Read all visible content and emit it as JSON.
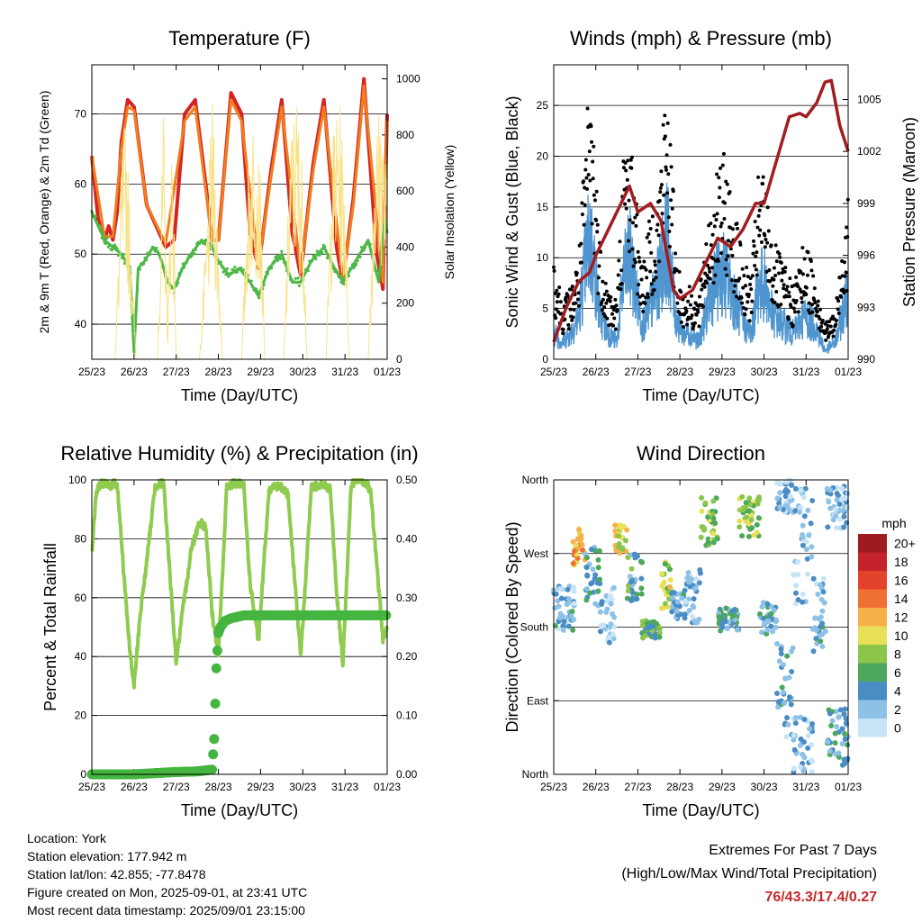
{
  "colors": {
    "red": "#d62323",
    "orange": "#f07d1e",
    "green": "#4db848",
    "yellow": "#f8e38a",
    "blue": "#4f95cf",
    "black": "#000000",
    "maroon": "#a11d21",
    "rh_green": "#8fcb4f",
    "precip_green": "#45b540",
    "extremes": "#c62828"
  },
  "footer": {
    "location": "Location: York",
    "elevation": "Station elevation: 177.942 m",
    "latlon": "Station lat/lon: 42.855; -77.8478",
    "created": "Figure created on Mon, 2025-09-01, at 23:41 UTC",
    "recent": "Most recent data timestamp: 2025/09/01 23:15:00",
    "extremes_title": "Extremes For Past 7 Days",
    "extremes_subtitle": "(High/Low/Max Wind/Total Precipitation)",
    "extremes_values": "76/43.3/17.4/0.27"
  },
  "chart_data": [
    {
      "type": "line",
      "title": "Temperature (F)",
      "xlabel": "Time (Day/UTC)",
      "ylabel": "2m & 9m T (Red, Orange) & 2m Td (Green)",
      "y2label": "Solar Insolation (Yellow)",
      "x_ticks": [
        "25/23",
        "26/23",
        "27/23",
        "28/23",
        "29/23",
        "30/23",
        "31/23",
        "01/23"
      ],
      "xlim": [
        0,
        7
      ],
      "ylim": [
        35,
        77
      ],
      "y_ticks": [
        40,
        50,
        60,
        70
      ],
      "y2lim": [
        0,
        1050
      ],
      "y2_ticks": [
        0,
        200,
        400,
        600,
        800,
        1000
      ],
      "grid": true,
      "series": [
        {
          "color": "red",
          "axis": "left",
          "x": [
            0,
            0.15,
            0.3,
            0.4,
            0.5,
            0.6,
            0.7,
            0.85,
            1.0,
            1.3,
            1.6,
            1.75,
            1.95,
            2.2,
            2.45,
            2.7,
            2.85,
            3.0,
            3.3,
            3.55,
            3.75,
            3.95,
            4.25,
            4.5,
            4.75,
            4.95,
            5.25,
            5.5,
            5.8,
            5.95,
            6.2,
            6.45,
            6.75,
            6.9,
            7.0
          ],
          "y": [
            64,
            55,
            52,
            54,
            52,
            56,
            66,
            72,
            71,
            57,
            53,
            51,
            52,
            70,
            72,
            60,
            52,
            52,
            73,
            70,
            53,
            48,
            62,
            72,
            53,
            47,
            63,
            72,
            51,
            46,
            58,
            75,
            50,
            45,
            70
          ]
        },
        {
          "color": "orange",
          "axis": "left",
          "x": [
            0,
            0.3,
            0.5,
            0.7,
            0.85,
            1.0,
            1.3,
            1.75,
            2.2,
            2.45,
            2.85,
            3.0,
            3.3,
            3.55,
            3.95,
            4.25,
            4.5,
            4.95,
            5.25,
            5.5,
            5.95,
            6.2,
            6.45,
            6.9,
            7.0
          ],
          "y": [
            64,
            52.5,
            52.5,
            65,
            71,
            70.5,
            57,
            51.5,
            69,
            71,
            52,
            52,
            72,
            69,
            48.5,
            61,
            71,
            47.5,
            62,
            71,
            46.5,
            57,
            74,
            46,
            69
          ]
        },
        {
          "color": "green",
          "axis": "left",
          "x": [
            0,
            0.3,
            0.5,
            0.7,
            0.9,
            1.0,
            1.1,
            1.25,
            1.45,
            1.6,
            1.8,
            1.95,
            2.15,
            2.35,
            2.6,
            2.85,
            3.0,
            3.25,
            3.5,
            3.75,
            3.95,
            4.2,
            4.5,
            4.75,
            4.95,
            5.2,
            5.5,
            5.75,
            5.95,
            6.25,
            6.55,
            6.8,
            6.95,
            7.0
          ],
          "y": [
            56,
            52,
            51,
            50,
            48,
            36,
            48,
            49,
            51,
            50,
            46,
            45,
            48,
            50,
            52,
            51,
            49,
            47,
            48,
            46,
            44,
            48,
            50,
            46,
            46,
            49,
            51,
            48,
            46,
            49,
            52,
            46,
            55,
            53
          ]
        },
        {
          "color": "yellow",
          "axis": "right",
          "x": [
            0,
            0.55,
            0.7,
            0.8,
            0.9,
            1.05,
            1.1,
            1.55,
            1.7,
            1.8,
            1.9,
            2.0,
            2.1,
            2.55,
            2.75,
            2.85,
            2.95,
            3.1,
            3.55,
            3.7,
            3.85,
            4.0,
            4.1,
            4.55,
            4.7,
            4.85,
            5.0,
            5.1,
            5.55,
            5.7,
            5.85,
            6.0,
            6.1,
            6.55,
            6.7,
            6.85,
            7.0
          ],
          "y": [
            0,
            0,
            700,
            900,
            550,
            0,
            0,
            0,
            900,
            120,
            950,
            20,
            0,
            0,
            550,
            950,
            620,
            0,
            0,
            700,
            920,
            650,
            0,
            0,
            800,
            960,
            700,
            0,
            0,
            800,
            960,
            700,
            0,
            0,
            800,
            960,
            650
          ]
        }
      ]
    },
    {
      "type": "line",
      "title": "Winds (mph) & Pressure (mb)",
      "xlabel": "Time (Day/UTC)",
      "ylabel": "Sonic Wind & Gust (Blue, Black)",
      "y2label": "Station Pressure (Maroon)",
      "x_ticks": [
        "25/23",
        "26/23",
        "27/23",
        "28/23",
        "29/23",
        "30/23",
        "31/23",
        "01/23"
      ],
      "xlim": [
        0,
        7
      ],
      "ylim": [
        0,
        29
      ],
      "y_ticks": [
        0,
        5,
        10,
        15,
        20,
        25
      ],
      "y2lim": [
        990,
        1007
      ],
      "y2_ticks": [
        990,
        993,
        996,
        999,
        1002,
        1005
      ],
      "grid": true,
      "series": [
        {
          "color": "black",
          "axis": "left",
          "kind": "scatter",
          "x": [
            0,
            0.2,
            0.4,
            0.6,
            0.75,
            0.85,
            0.95,
            1.1,
            1.3,
            1.5,
            1.65,
            1.8,
            1.95,
            2.1,
            2.3,
            2.5,
            2.6,
            2.7,
            2.9,
            3.05,
            3.25,
            3.45,
            3.65,
            3.85,
            4.05,
            4.3,
            4.5,
            4.7,
            4.85,
            5.0,
            5.2,
            5.45,
            5.7,
            5.95,
            6.2,
            6.45,
            6.7,
            6.9,
            7.0
          ],
          "y": [
            9,
            5,
            6,
            9,
            18,
            24,
            20,
            10,
            6,
            5,
            17,
            20,
            14,
            8,
            12,
            15,
            21,
            24,
            10,
            6,
            6,
            5,
            12,
            15,
            17,
            13,
            8,
            7,
            15,
            16,
            10,
            8,
            6,
            10,
            8,
            3,
            4,
            12,
            14
          ]
        },
        {
          "color": "blue",
          "axis": "left",
          "x": [
            0,
            0.2,
            0.4,
            0.6,
            0.75,
            0.85,
            0.95,
            1.1,
            1.3,
            1.5,
            1.65,
            1.8,
            1.95,
            2.1,
            2.3,
            2.5,
            2.6,
            2.7,
            2.9,
            3.05,
            3.25,
            3.45,
            3.65,
            3.85,
            4.05,
            4.3,
            4.5,
            4.7,
            4.85,
            5.0,
            5.2,
            5.45,
            5.7,
            5.95,
            6.2,
            6.45,
            6.7,
            6.9,
            7.0
          ],
          "y": [
            3,
            2,
            3,
            5,
            11,
            14,
            11,
            5,
            3,
            2,
            9,
            12,
            8,
            4,
            6,
            9,
            12,
            14,
            5,
            3,
            3,
            2,
            6,
            9,
            10,
            7,
            4,
            3,
            8,
            9,
            5,
            4,
            3,
            5,
            4,
            1,
            2,
            6,
            8
          ]
        },
        {
          "color": "maroon",
          "axis": "right",
          "x": [
            0,
            0.3,
            0.6,
            0.85,
            1.0,
            1.2,
            1.5,
            1.8,
            2.0,
            2.3,
            2.55,
            2.85,
            3.0,
            3.3,
            3.6,
            3.9,
            4.2,
            4.5,
            4.8,
            5.0,
            5.3,
            5.6,
            5.85,
            6.0,
            6.25,
            6.45,
            6.6,
            6.8,
            7.0
          ],
          "y": [
            991,
            993,
            994.5,
            995,
            996,
            997,
            998.5,
            1000,
            998.5,
            999,
            998,
            994,
            993.5,
            994,
            995.5,
            997,
            996.5,
            997.5,
            999,
            999,
            1001.5,
            1004,
            1004.2,
            1004,
            1004.8,
            1006,
            1006.1,
            1003.5,
            1002
          ]
        }
      ]
    },
    {
      "type": "line",
      "title": "Relative Humidity (%) & Precipitation (in)",
      "xlabel": "Time (Day/UTC)",
      "ylabel": "Percent & Total Rainfall",
      "x_ticks": [
        "25/23",
        "26/23",
        "27/23",
        "28/23",
        "29/23",
        "30/23",
        "31/23",
        "01/23"
      ],
      "xlim": [
        0,
        7
      ],
      "ylim": [
        0,
        100
      ],
      "y_ticks": [
        0,
        20,
        40,
        60,
        80,
        100
      ],
      "y2lim": [
        0,
        0.5
      ],
      "y2_ticks": [
        "0.00",
        "0.10",
        "0.20",
        "0.30",
        "0.40",
        "0.50"
      ],
      "grid": true,
      "series": [
        {
          "color": "rh_green",
          "axis": "left",
          "x": [
            0,
            0.1,
            0.2,
            0.4,
            0.6,
            0.75,
            0.9,
            1.0,
            1.15,
            1.3,
            1.5,
            1.7,
            1.85,
            2.0,
            2.15,
            2.35,
            2.55,
            2.7,
            2.85,
            3.0,
            3.2,
            3.4,
            3.6,
            3.75,
            3.95,
            4.2,
            4.45,
            4.65,
            4.8,
            4.95,
            5.2,
            5.45,
            5.65,
            5.8,
            5.95,
            6.15,
            6.4,
            6.6,
            6.75,
            6.9,
            7.0
          ],
          "y": [
            75,
            95,
            99,
            98,
            99,
            70,
            42,
            30,
            55,
            72,
            98,
            99,
            68,
            38,
            55,
            76,
            86,
            84,
            55,
            40,
            98,
            99,
            98,
            65,
            45,
            97,
            98,
            95,
            68,
            40,
            97,
            99,
            97,
            62,
            38,
            99,
            100,
            97,
            72,
            46,
            50
          ]
        },
        {
          "color": "precip_green",
          "axis": "right",
          "x": [
            0,
            0.5,
            1.0,
            1.5,
            2.0,
            2.5,
            2.85,
            2.9,
            2.95,
            3.0,
            3.05,
            3.15,
            3.3,
            3.6,
            4.0,
            5.0,
            6.0,
            7.0
          ],
          "y": [
            0,
            0,
            0,
            0.002,
            0.004,
            0.005,
            0.008,
            0.06,
            0.18,
            0.24,
            0.25,
            0.26,
            0.265,
            0.27,
            0.27,
            0.27,
            0.27,
            0.27
          ]
        }
      ]
    },
    {
      "type": "scatter",
      "title": "Wind Direction",
      "xlabel": "Time (Day/UTC)",
      "ylabel": "Direction (Colored By Speed)",
      "x_ticks": [
        "25/23",
        "26/23",
        "27/23",
        "28/23",
        "29/23",
        "30/23",
        "31/23",
        "01/23"
      ],
      "xlim": [
        0,
        7
      ],
      "ylim": [
        0,
        360
      ],
      "y_ticks": [
        {
          "value": 0,
          "label": "North"
        },
        {
          "value": 90,
          "label": "East"
        },
        {
          "value": 180,
          "label": "South"
        },
        {
          "value": 270,
          "label": "West"
        },
        {
          "value": 360,
          "label": "North"
        }
      ],
      "grid": true,
      "legend_title": "mph",
      "legend": [
        {
          "label": "0",
          "color": "#c6e4f6"
        },
        {
          "label": "2",
          "color": "#8ec1e6"
        },
        {
          "label": "4",
          "color": "#4a8dc4"
        },
        {
          "label": "6",
          "color": "#4ba85c"
        },
        {
          "label": "8",
          "color": "#8cc54b"
        },
        {
          "label": "10",
          "color": "#e8e056"
        },
        {
          "label": "12",
          "color": "#f6b14a"
        },
        {
          "label": "14",
          "color": "#ef7033"
        },
        {
          "label": "16",
          "color": "#e2432a"
        },
        {
          "label": "18",
          "color": "#c4222a"
        },
        {
          "label": "20+",
          "color": "#9e1c20"
        }
      ],
      "clusters": [
        {
          "x": [
            0,
            0.5
          ],
          "dir": [
            175,
            230
          ],
          "speed": 3
        },
        {
          "x": [
            0.45,
            0.75
          ],
          "dir": [
            255,
            300
          ],
          "speed": 12
        },
        {
          "x": [
            0.75,
            1.1
          ],
          "dir": [
            205,
            280
          ],
          "speed": 4
        },
        {
          "x": [
            1.1,
            1.45
          ],
          "dir": [
            160,
            230
          ],
          "speed": 2
        },
        {
          "x": [
            1.45,
            1.75
          ],
          "dir": [
            270,
            305
          ],
          "speed": 10
        },
        {
          "x": [
            1.75,
            2.1
          ],
          "dir": [
            210,
            270
          ],
          "speed": 5
        },
        {
          "x": [
            2.1,
            2.55
          ],
          "dir": [
            165,
            190
          ],
          "speed": 6
        },
        {
          "x": [
            2.55,
            2.8
          ],
          "dir": [
            200,
            260
          ],
          "speed": 9
        },
        {
          "x": [
            2.8,
            3.1
          ],
          "dir": [
            190,
            225
          ],
          "speed": 3
        },
        {
          "x": [
            3.1,
            3.5
          ],
          "dir": [
            185,
            250
          ],
          "speed": 2
        },
        {
          "x": [
            3.5,
            3.9
          ],
          "dir": [
            280,
            340
          ],
          "speed": 8
        },
        {
          "x": [
            3.9,
            4.4
          ],
          "dir": [
            175,
            205
          ],
          "speed": 4
        },
        {
          "x": [
            4.4,
            4.9
          ],
          "dir": [
            290,
            340
          ],
          "speed": 8
        },
        {
          "x": [
            4.9,
            5.3
          ],
          "dir": [
            170,
            210
          ],
          "speed": 4
        },
        {
          "x": [
            5.3,
            5.7
          ],
          "dir": [
            40,
            160
          ],
          "speed": 3
        },
        {
          "x": [
            5.3,
            5.7
          ],
          "dir": [
            320,
            360
          ],
          "speed": 2
        },
        {
          "x": [
            5.7,
            6.15
          ],
          "dir": [
            0,
            70
          ],
          "speed": 2
        },
        {
          "x": [
            5.7,
            6.15
          ],
          "dir": [
            200,
            350
          ],
          "speed": 2
        },
        {
          "x": [
            6.15,
            6.5
          ],
          "dir": [
            150,
            240
          ],
          "speed": 3
        },
        {
          "x": [
            6.5,
            7.0
          ],
          "dir": [
            10,
            80
          ],
          "speed": 4
        },
        {
          "x": [
            6.5,
            7.0
          ],
          "dir": [
            300,
            355
          ],
          "speed": 2
        }
      ]
    }
  ]
}
